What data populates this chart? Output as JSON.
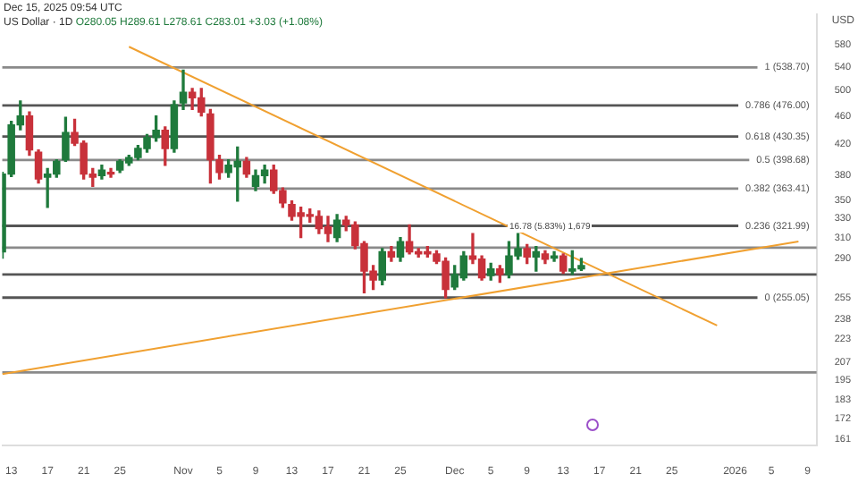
{
  "chart_data": {
    "type": "candlestick",
    "title": "US Dollar · 1D",
    "subtitle": "O280.05 H289.61 L278.61 C283.01 +3.03 (+1.08%)",
    "ylabel": "USD",
    "annotations": [
      "Dec 15, 2025 09:54 UTC",
      "16.78 (5.83%) 1,679"
    ],
    "x": [
      "2025-10-12",
      "2025-10-13",
      "2025-10-14",
      "2025-10-15",
      "2025-10-16",
      "2025-10-17",
      "2025-10-18",
      "2025-10-19",
      "2025-10-20",
      "2025-10-21",
      "2025-10-22",
      "2025-10-23",
      "2025-10-24",
      "2025-10-25",
      "2025-10-26",
      "2025-10-27",
      "2025-10-28",
      "2025-10-29",
      "2025-10-30",
      "2025-10-31",
      "2025-11-01",
      "2025-11-02",
      "2025-11-03",
      "2025-11-04",
      "2025-11-05",
      "2025-11-06",
      "2025-11-07",
      "2025-11-08",
      "2025-11-09",
      "2025-11-10",
      "2025-11-11",
      "2025-11-12",
      "2025-11-13",
      "2025-11-14",
      "2025-11-15",
      "2025-11-16",
      "2025-11-17",
      "2025-11-18",
      "2025-11-19",
      "2025-11-20",
      "2025-11-21",
      "2025-11-22",
      "2025-11-23",
      "2025-11-24",
      "2025-11-25",
      "2025-11-26",
      "2025-11-27",
      "2025-11-28",
      "2025-11-29",
      "2025-11-30",
      "2025-12-01",
      "2025-12-02",
      "2025-12-03",
      "2025-12-04",
      "2025-12-05",
      "2025-12-06",
      "2025-12-07",
      "2025-12-08",
      "2025-12-09",
      "2025-12-10",
      "2025-12-11",
      "2025-12-12",
      "2025-12-13",
      "2025-12-14",
      "2025-12-15"
    ],
    "ohlc": [
      [
        296,
        383,
        290,
        381
      ],
      [
        381,
        452,
        378,
        447
      ],
      [
        447,
        483,
        440,
        460
      ],
      [
        460,
        466,
        405,
        412
      ],
      [
        409,
        412,
        370,
        375
      ],
      [
        377,
        388,
        342,
        381
      ],
      [
        381,
        399,
        377,
        397
      ],
      [
        399,
        458,
        397,
        436
      ],
      [
        436,
        455,
        418,
        421
      ],
      [
        421,
        424,
        375,
        381
      ],
      [
        381,
        388,
        366,
        377
      ],
      [
        379,
        392,
        375,
        386
      ],
      [
        383,
        388,
        377,
        381
      ],
      [
        386,
        399,
        383,
        397
      ],
      [
        395,
        405,
        392,
        402
      ],
      [
        402,
        418,
        399,
        414
      ],
      [
        414,
        433,
        409,
        429
      ],
      [
        429,
        460,
        424,
        439
      ],
      [
        439,
        444,
        392,
        414
      ],
      [
        414,
        483,
        409,
        477
      ],
      [
        480,
        534,
        470,
        497
      ],
      [
        497,
        503,
        470,
        488
      ],
      [
        488,
        503,
        460,
        466
      ],
      [
        463,
        470,
        370,
        399
      ],
      [
        399,
        405,
        375,
        383
      ],
      [
        383,
        399,
        377,
        392
      ],
      [
        390,
        416,
        349,
        397
      ],
      [
        397,
        402,
        377,
        381
      ],
      [
        366,
        386,
        361,
        379
      ],
      [
        379,
        392,
        370,
        386
      ],
      [
        386,
        392,
        358,
        361
      ],
      [
        361,
        364,
        342,
        347
      ],
      [
        345,
        349,
        328,
        332
      ],
      [
        336,
        342,
        310,
        332
      ],
      [
        334,
        340,
        326,
        332
      ],
      [
        332,
        338,
        314,
        319
      ],
      [
        321,
        332,
        306,
        314
      ],
      [
        310,
        334,
        306,
        328
      ],
      [
        328,
        332,
        317,
        323
      ],
      [
        323,
        326,
        299,
        302
      ],
      [
        304,
        306,
        259,
        278
      ],
      [
        278,
        283,
        262,
        270
      ],
      [
        270,
        299,
        266,
        296
      ],
      [
        296,
        301,
        287,
        291
      ],
      [
        291,
        310,
        287,
        306
      ],
      [
        306,
        323,
        294,
        296
      ],
      [
        296,
        299,
        291,
        294
      ],
      [
        296,
        301,
        291,
        294
      ],
      [
        294,
        297,
        285,
        287
      ],
      [
        287,
        290,
        255,
        262
      ],
      [
        264,
        283,
        262,
        275
      ],
      [
        272,
        296,
        270,
        292
      ],
      [
        292,
        314,
        285,
        289
      ],
      [
        289,
        292,
        270,
        272
      ],
      [
        274,
        285,
        270,
        280
      ],
      [
        280,
        283,
        268,
        275
      ],
      [
        275,
        306,
        272,
        292
      ],
      [
        292,
        314,
        289,
        299
      ],
      [
        299,
        303,
        285,
        291
      ],
      [
        291,
        301,
        278,
        296
      ],
      [
        294,
        297,
        285,
        289
      ],
      [
        290,
        296,
        287,
        292
      ],
      [
        292,
        294,
        276,
        278
      ],
      [
        278,
        297,
        275,
        280
      ],
      [
        280.05,
        289.61,
        278.61,
        283.01
      ]
    ],
    "colors": [
      "#1f7a3c",
      "#1f7a3c",
      "#1f7a3c",
      "#c8313a",
      "#c8313a",
      "#1f7a3c",
      "#1f7a3c",
      "#1f7a3c",
      "#c8313a",
      "#c8313a",
      "#c8313a",
      "#1f7a3c",
      "#c8313a",
      "#1f7a3c",
      "#1f7a3c",
      "#1f7a3c",
      "#1f7a3c",
      "#1f7a3c",
      "#c8313a",
      "#1f7a3c",
      "#1f7a3c",
      "#c8313a",
      "#c8313a",
      "#c8313a",
      "#c8313a",
      "#1f7a3c",
      "#1f7a3c",
      "#c8313a",
      "#1f7a3c",
      "#1f7a3c",
      "#c8313a",
      "#c8313a",
      "#c8313a",
      "#c8313a",
      "#c8313a",
      "#c8313a",
      "#c8313a",
      "#1f7a3c",
      "#c8313a",
      "#c8313a",
      "#c8313a",
      "#c8313a",
      "#1f7a3c",
      "#c8313a",
      "#1f7a3c",
      "#c8313a",
      "#c8313a",
      "#c8313a",
      "#c8313a",
      "#c8313a",
      "#1f7a3c",
      "#1f7a3c",
      "#c8313a",
      "#c8313a",
      "#1f7a3c",
      "#c8313a",
      "#1f7a3c",
      "#1f7a3c",
      "#c8313a",
      "#1f7a3c",
      "#c8313a",
      "#1f7a3c",
      "#c8313a",
      "#1f7a3c",
      "#1f7a3c"
    ],
    "series": [
      {
        "type": "line",
        "color": "#f0a030",
        "x": [
          "2025-10-26",
          "2025-12-30"
        ],
        "values": [
          576,
          233
        ]
      },
      {
        "type": "line",
        "color": "#f0a030",
        "x": [
          "2025-10-12",
          "2026-01-08"
        ],
        "values": [
          199,
          306
        ]
      }
    ],
    "ref_lines": [
      {
        "axis": "y",
        "value": 538.7,
        "label": "1 (538.70)",
        "color": "#8a8a8a"
      },
      {
        "axis": "y",
        "value": 476,
        "label": "0.786 (476.00)",
        "color": "#555555"
      },
      {
        "axis": "y",
        "value": 430.35,
        "label": "0.618 (430.35)",
        "color": "#555555"
      },
      {
        "axis": "y",
        "value": 398.68,
        "label": "0.5 (398.68)",
        "color": "#8a8a8a"
      },
      {
        "axis": "y",
        "value": 363.41,
        "label": "0.382 (363.41)",
        "color": "#8a8a8a"
      },
      {
        "axis": "y",
        "value": 321.99,
        "label": "0.236 (321.99)",
        "color": "#555555"
      },
      {
        "axis": "y",
        "value": 300,
        "color": "#8a8a8a"
      },
      {
        "axis": "y",
        "value": 275,
        "color": "#555555"
      },
      {
        "axis": "y",
        "value": 255.05,
        "label": "0 (255.05)",
        "color": "#555555"
      },
      {
        "axis": "y",
        "value": 200,
        "color": "#8a8a8a"
      }
    ],
    "log": true,
    "legend": false,
    "xlim": [
      "2025-10-12",
      "2026-01-10"
    ],
    "xticks": [
      {
        "value": "2025-10-13",
        "label": "13"
      },
      {
        "value": "2025-10-17",
        "label": "17"
      },
      {
        "value": "2025-10-21",
        "label": "21"
      },
      {
        "value": "2025-10-25",
        "label": "25"
      },
      {
        "value": "2025-11-01",
        "label": "Nov"
      },
      {
        "value": "2025-11-05",
        "label": "5"
      },
      {
        "value": "2025-11-09",
        "label": "9"
      },
      {
        "value": "2025-11-13",
        "label": "13"
      },
      {
        "value": "2025-11-17",
        "label": "17"
      },
      {
        "value": "2025-11-21",
        "label": "21"
      },
      {
        "value": "2025-11-25",
        "label": "25"
      },
      {
        "value": "2025-12-01",
        "label": "Dec"
      },
      {
        "value": "2025-12-05",
        "label": "5"
      },
      {
        "value": "2025-12-09",
        "label": "9"
      },
      {
        "value": "2025-12-13",
        "label": "13"
      },
      {
        "value": "2025-12-17",
        "label": "17"
      },
      {
        "value": "2025-12-21",
        "label": "21"
      },
      {
        "value": "2025-12-25",
        "label": "25"
      },
      {
        "value": "2026-01-01",
        "label": "2026"
      },
      {
        "value": "2026-01-05",
        "label": "5"
      },
      {
        "value": "2026-01-09",
        "label": "9"
      }
    ],
    "ylim": [
      158,
      640
    ],
    "yticks": [
      161,
      172,
      183,
      195,
      207,
      223,
      238,
      255,
      290,
      310,
      330,
      350,
      380,
      420,
      460,
      500,
      540,
      580
    ]
  }
}
